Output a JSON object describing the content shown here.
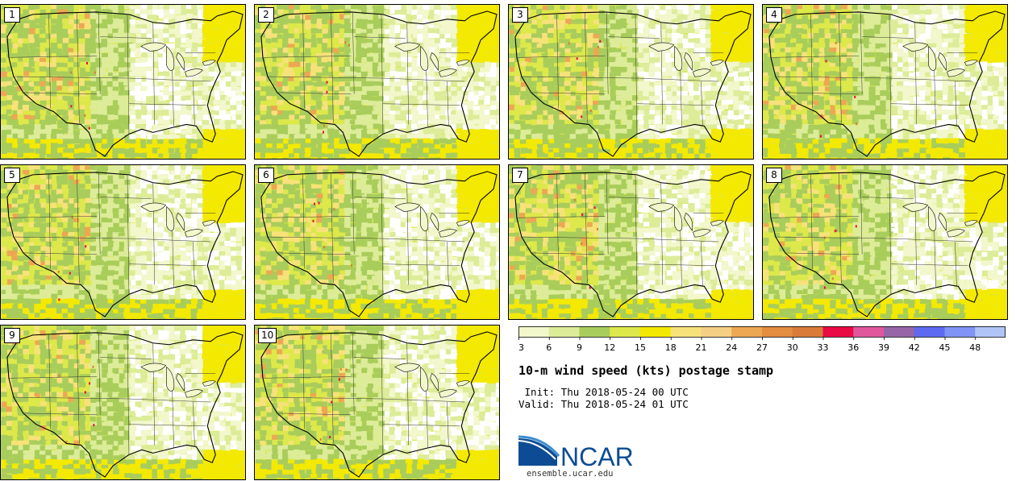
{
  "panels": [
    {
      "label": "1"
    },
    {
      "label": "2"
    },
    {
      "label": "3"
    },
    {
      "label": "4"
    },
    {
      "label": "5"
    },
    {
      "label": "6"
    },
    {
      "label": "7"
    },
    {
      "label": "8"
    },
    {
      "label": "9"
    },
    {
      "label": "10"
    }
  ],
  "legend": {
    "ticks": [
      "3",
      "6",
      "9",
      "12",
      "15",
      "18",
      "21",
      "24",
      "27",
      "30",
      "33",
      "36",
      "39",
      "42",
      "45",
      "48"
    ],
    "colors": [
      "#f2f7cc",
      "#dcec98",
      "#a9cd5b",
      "#dde84a",
      "#f4e900",
      "#f7e27a",
      "#f4cf84",
      "#eda753",
      "#e28d40",
      "#d97b3a",
      "#ea0a44",
      "#e0579e",
      "#9666a7",
      "#5e6af0",
      "#7f94f5",
      "#b0c4f6"
    ]
  },
  "title": "10-m wind speed (kts) postage stamp",
  "init_line": " Init: Thu 2018-05-24 00 UTC",
  "valid_line": "Valid: Thu 2018-05-24 01 UTC",
  "logo": {
    "wordmark": "NCAR",
    "url": "ensemble.ucar.edu"
  },
  "colors": {
    "ncar_blue": "#0d4c94",
    "ncar_light_blue": "#3f8ed0"
  }
}
